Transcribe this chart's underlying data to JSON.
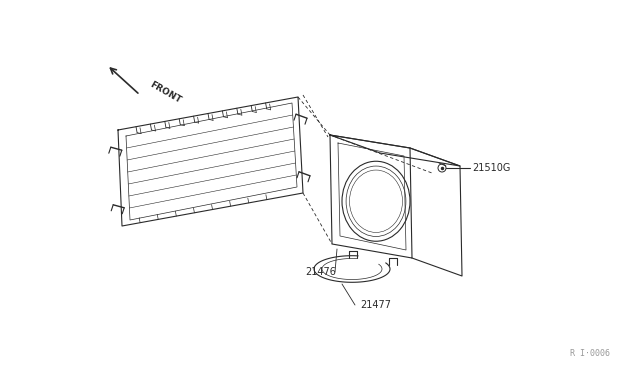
{
  "bg_color": "#ffffff",
  "line_color": "#2a2a2a",
  "label_color": "#2a2a2a",
  "fig_width": 6.4,
  "fig_height": 3.72,
  "dpi": 100,
  "watermark": "R I·0006"
}
